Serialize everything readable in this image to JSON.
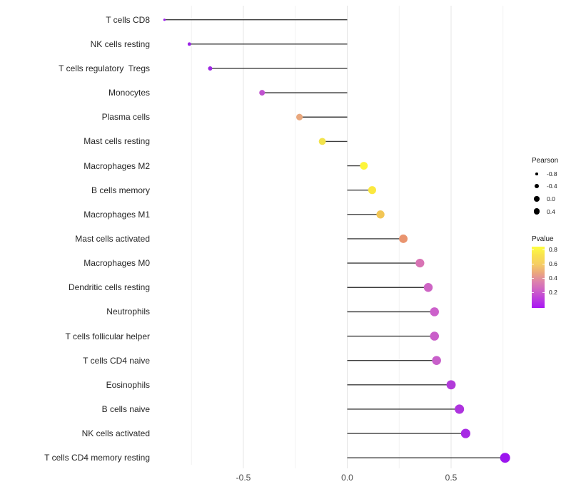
{
  "chart_data": {
    "type": "scatter",
    "variant": "lollipop",
    "orientation": "horizontal",
    "title": "",
    "xlabel": "",
    "ylabel": "",
    "x_tick_labels": [
      "-0.5",
      "0.0",
      "0.5"
    ],
    "x_tick_values": [
      -0.5,
      0.0,
      0.5
    ],
    "xlim": [
      -0.91,
      0.8
    ],
    "grid": true,
    "baseline_x": 0.0,
    "points": [
      {
        "label": "T cells CD8",
        "pearson": -0.88,
        "color": "#9c1cee"
      },
      {
        "label": "NK cells resting",
        "pearson": -0.76,
        "color": "#9a22e6"
      },
      {
        "label": "T cells regulatory  Tregs",
        "pearson": -0.66,
        "color": "#9c26e2"
      },
      {
        "label": "Monocytes",
        "pearson": -0.41,
        "color": "#c052cf"
      },
      {
        "label": "Plasma cells",
        "pearson": -0.23,
        "color": "#e9a87e"
      },
      {
        "label": "Mast cells resting",
        "pearson": -0.12,
        "color": "#f2e34c"
      },
      {
        "label": "Macrophages M2",
        "pearson": 0.08,
        "color": "#fdf53b"
      },
      {
        "label": "B cells memory",
        "pearson": 0.12,
        "color": "#fbe83f"
      },
      {
        "label": "Macrophages M1",
        "pearson": 0.16,
        "color": "#f2c655"
      },
      {
        "label": "Mast cells activated",
        "pearson": 0.27,
        "color": "#e9946f"
      },
      {
        "label": "Macrophages M0",
        "pearson": 0.35,
        "color": "#d873b4"
      },
      {
        "label": "Dendritic cells resting",
        "pearson": 0.39,
        "color": "#cd64c4"
      },
      {
        "label": "Neutrophils",
        "pearson": 0.42,
        "color": "#cc61cb"
      },
      {
        "label": "T cells follicular helper",
        "pearson": 0.42,
        "color": "#c95ec9"
      },
      {
        "label": "T cells CD4 naive",
        "pearson": 0.43,
        "color": "#c85fca"
      },
      {
        "label": "Eosinophils",
        "pearson": 0.5,
        "color": "#b13bd9"
      },
      {
        "label": "B cells naive",
        "pearson": 0.54,
        "color": "#ae33de"
      },
      {
        "label": "NK cells activated",
        "pearson": 0.57,
        "color": "#a72ae4"
      },
      {
        "label": "T cells CD4 memory resting",
        "pearson": 0.76,
        "color": "#9b15ee"
      }
    ],
    "stem_color": "#3d3d3d",
    "legend": {
      "position": "right",
      "size_legend": {
        "title": "Pearson",
        "entries": [
          "-0.8",
          "-0.4",
          "0.0",
          "0.4"
        ],
        "dot_color": "#000000"
      },
      "color_legend": {
        "title": "Pvalue",
        "tick_labels": [
          "0.8",
          "0.6",
          "0.4",
          "0.2"
        ],
        "gradient_top_to_bottom": [
          "#fefe3f",
          "#f9e14f",
          "#f6ce63",
          "#eba77e",
          "#dd82ac",
          "#ce62c6",
          "#bb3bde",
          "#a916f3"
        ]
      }
    }
  }
}
